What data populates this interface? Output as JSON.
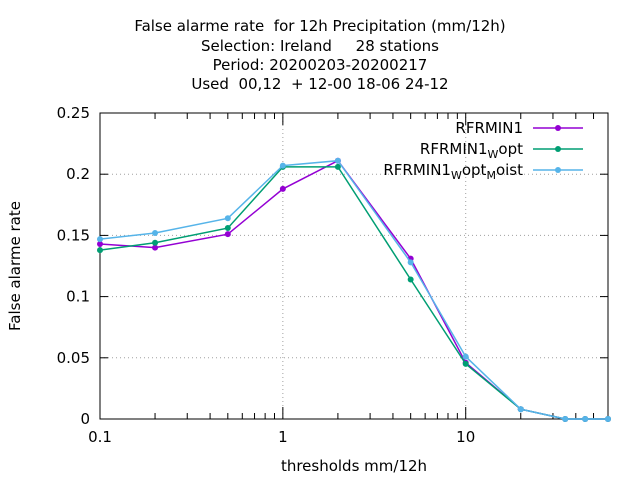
{
  "chart_data": {
    "type": "line",
    "title_lines": [
      "False alarme rate  for 12h Precipitation (mm/12h)",
      "Selection: Ireland     28 stations",
      "Period: 20200203-20200217",
      "Used  00,12  + 12-00 18-06 24-12"
    ],
    "xlabel": "thresholds mm/12h",
    "ylabel": "False alarme rate",
    "x_scale": "log",
    "xlim": [
      0.1,
      60
    ],
    "ylim": [
      0,
      0.25
    ],
    "x_tick_labels": [
      "0.1",
      "1",
      "10"
    ],
    "y_tick_labels": [
      "0",
      "0.05",
      "0.1",
      "0.15",
      "0.2",
      "0.25"
    ],
    "grid": true,
    "legend_position": "top-right",
    "x": [
      0.1,
      0.2,
      0.5,
      1,
      2,
      5,
      10,
      20,
      35,
      45,
      60
    ],
    "series": [
      {
        "name": "RFRMIN1",
        "name_parts": [
          {
            "text": "RFRMIN1",
            "sub": false
          }
        ],
        "color": "#9400D3",
        "values": [
          0.143,
          0.14,
          0.151,
          0.188,
          0.211,
          0.131,
          0.046,
          0.008,
          0.0,
          0.0,
          0.0
        ]
      },
      {
        "name": "RFRMIN1Wopt",
        "name_parts": [
          {
            "text": "RFRMIN1",
            "sub": false
          },
          {
            "text": "W",
            "sub": true
          },
          {
            "text": "opt",
            "sub": false
          }
        ],
        "color": "#009E73",
        "values": [
          0.138,
          0.144,
          0.156,
          0.206,
          0.206,
          0.114,
          0.045,
          0.008,
          0.0,
          0.0,
          0.0
        ]
      },
      {
        "name": "RFRMIN1WoptMoist",
        "name_parts": [
          {
            "text": "RFRMIN1",
            "sub": false
          },
          {
            "text": "W",
            "sub": true
          },
          {
            "text": "opt",
            "sub": false
          },
          {
            "text": "M",
            "sub": true
          },
          {
            "text": "oist",
            "sub": false
          }
        ],
        "color": "#56B4E9",
        "values": [
          0.147,
          0.152,
          0.164,
          0.207,
          0.211,
          0.128,
          0.051,
          0.008,
          0.0,
          0.0,
          0.0
        ]
      }
    ]
  }
}
